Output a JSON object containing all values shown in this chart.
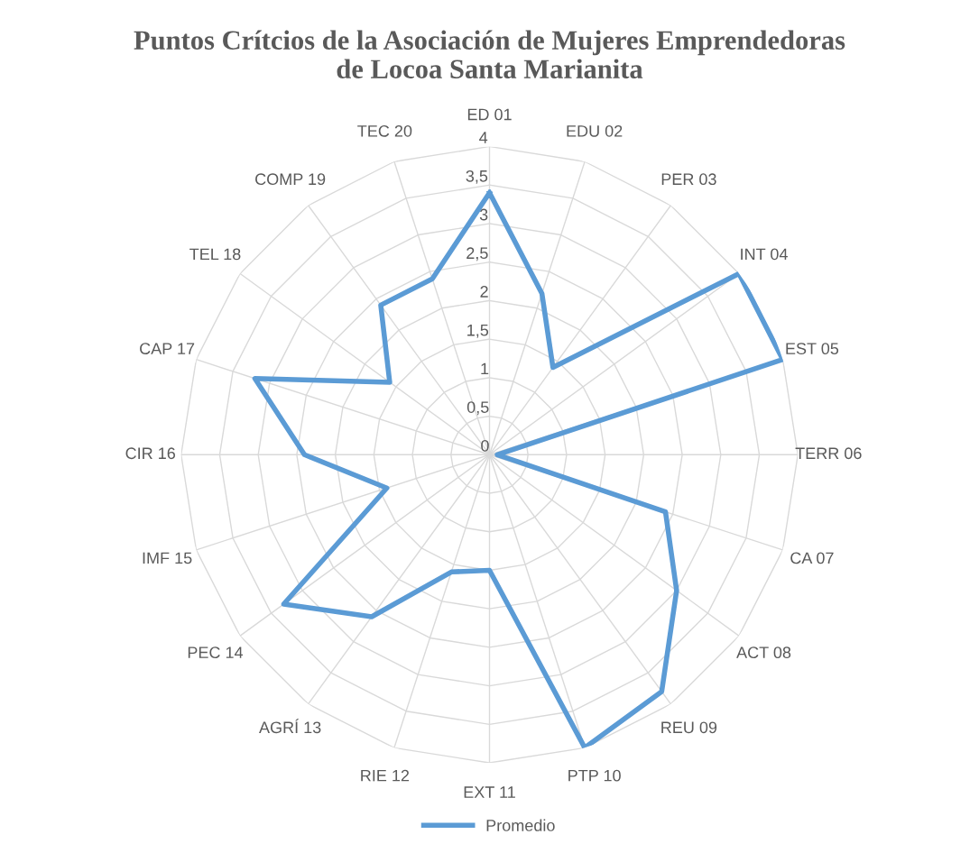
{
  "chart_data": {
    "type": "radar",
    "title": "Puntos Crítcios de la Asociación de Mujeres Emprendedoras\nde Locoa Santa Marianita",
    "categories": [
      "ED 01",
      "EDU 02",
      "PER 03",
      "INT 04",
      "EST 05",
      "TERR 06",
      "CA 07",
      "ACT 08",
      "REU 09",
      "PTP 10",
      "EXT 11",
      "RIE 12",
      "AGRÍ 13",
      "PEC 14",
      "IMF 15",
      "CIR 16",
      "CAP 17",
      "TEL 18",
      "COMP 19",
      "TEC 20"
    ],
    "series": [
      {
        "name": "Promedio",
        "color": "#5b9bd5",
        "values": [
          3.4,
          2.2,
          1.4,
          4.0,
          4.0,
          0.1,
          2.4,
          3.0,
          3.8,
          4.0,
          1.5,
          1.6,
          2.6,
          3.3,
          1.4,
          2.4,
          3.2,
          1.6,
          2.4,
          2.4
        ]
      }
    ],
    "ylim": [
      0,
      4
    ],
    "yticks": [
      0,
      {
        "value": 0.5,
        "label": "0,5"
      },
      1,
      {
        "value": 1.5,
        "label": "1,5"
      },
      2,
      {
        "value": 2.5,
        "label": "2,5"
      },
      3,
      {
        "value": 3.5,
        "label": "3,5"
      },
      4
    ],
    "grid": true,
    "legend": "bottom",
    "marker": "none",
    "line_style": "solid"
  }
}
